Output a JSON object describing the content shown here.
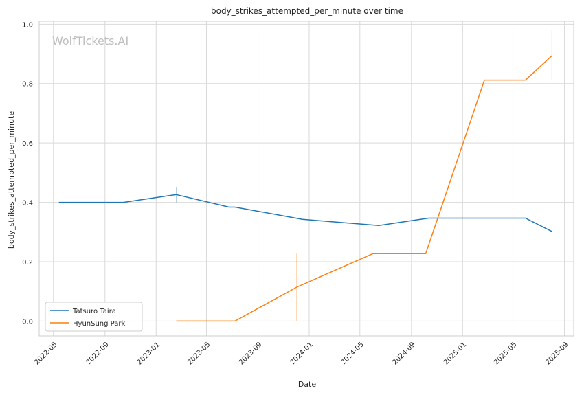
{
  "chart_data": {
    "type": "line",
    "title": "body_strikes_attempted_per_minute over time",
    "xlabel": "Date",
    "ylabel": "body_strikes_attempted_per_minute",
    "watermark": "WolfTickets.AI",
    "x_ticks": [
      "2022-05",
      "2022-09",
      "2023-01",
      "2023-05",
      "2023-09",
      "2024-01",
      "2024-05",
      "2024-09",
      "2025-01",
      "2025-05",
      "2025-09"
    ],
    "y_ticks": [
      "0.0",
      "0.2",
      "0.4",
      "0.6",
      "0.8",
      "1.0"
    ],
    "xlim": [
      "2022-03-28",
      "2025-09-23"
    ],
    "ylim": [
      -0.05,
      1.01
    ],
    "grid": true,
    "legend_position": "lower-left",
    "series": [
      {
        "name": "Tatsuro Taira",
        "color": "#1f77b4",
        "points": [
          [
            "2022-05-14",
            0.4
          ],
          [
            "2022-10-15",
            0.4
          ],
          [
            "2023-02-18",
            0.426
          ],
          [
            "2023-06-24",
            0.384
          ],
          [
            "2023-07-08",
            0.384
          ],
          [
            "2023-12-16",
            0.343
          ],
          [
            "2024-06-15",
            0.322
          ],
          [
            "2024-10-12",
            0.347
          ],
          [
            "2025-05-31",
            0.347
          ],
          [
            "2025-08-02",
            0.302
          ]
        ],
        "error_bars": [
          {
            "x": "2023-02-18",
            "low": 0.4,
            "high": 0.452
          }
        ]
      },
      {
        "name": "HyunSung Park",
        "color": "#ff7f0e",
        "points": [
          [
            "2023-02-18",
            0.0
          ],
          [
            "2023-07-08",
            0.0
          ],
          [
            "2023-12-02",
            0.114
          ],
          [
            "2024-06-01",
            0.227
          ],
          [
            "2024-10-05",
            0.227
          ],
          [
            "2025-02-22",
            0.812
          ],
          [
            "2025-05-31",
            0.812
          ],
          [
            "2025-08-02",
            0.894
          ]
        ],
        "error_bars": [
          {
            "x": "2023-12-02",
            "low": 0.0,
            "high": 0.227
          },
          {
            "x": "2025-08-02",
            "low": 0.81,
            "high": 0.978
          }
        ]
      }
    ]
  }
}
